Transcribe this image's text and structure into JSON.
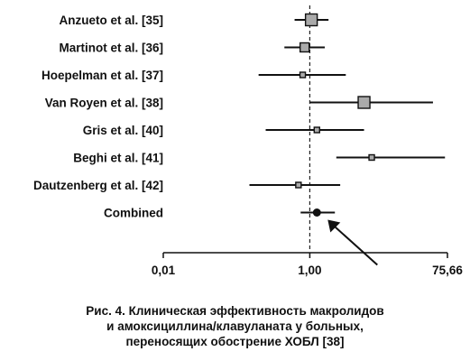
{
  "chart_data": {
    "type": "forest",
    "x_scale": "log",
    "xlim": [
      0.01,
      75.66
    ],
    "x_ticks": [
      {
        "value": 0.01,
        "label": "0,01"
      },
      {
        "value": 1.0,
        "label": "1,00"
      },
      {
        "value": 75.66,
        "label": "75,66"
      }
    ],
    "reference_line": 1.0,
    "studies": [
      {
        "label": "Anzueto et al. [35]",
        "estimate": 1.05,
        "ci": [
          0.62,
          1.8
        ],
        "weight": "large"
      },
      {
        "label": "Martinot et al. [36]",
        "estimate": 0.85,
        "ci": [
          0.45,
          1.6
        ],
        "weight": "medium"
      },
      {
        "label": "Hoepelman et al. [37]",
        "estimate": 0.8,
        "ci": [
          0.2,
          3.1
        ],
        "weight": "small"
      },
      {
        "label": "Van Royen et al. [38]",
        "estimate": 5.5,
        "ci": [
          1.0,
          48.0
        ],
        "weight": "large"
      },
      {
        "label": "Gris et al. [40]",
        "estimate": 1.25,
        "ci": [
          0.25,
          5.5
        ],
        "weight": "small"
      },
      {
        "label": "Beghi et al. [41]",
        "estimate": 7.0,
        "ci": [
          2.3,
          70.0
        ],
        "weight": "small"
      },
      {
        "label": "Dautzenberg et al. [42]",
        "estimate": 0.7,
        "ci": [
          0.15,
          2.6
        ],
        "weight": "small"
      }
    ],
    "combined": {
      "label": "Combined",
      "estimate": 1.25,
      "ci": [
        0.75,
        2.2
      ]
    },
    "annotation": "arrow pointing to combined estimate",
    "colors": {
      "box": "#aaaaaa",
      "line": "#111111",
      "combined": "#111111"
    }
  },
  "caption": {
    "line1": "Рис. 4. Клиническая эффективность макролидов",
    "line2": "и амоксициллина/клавуланата у больных,",
    "line3": "переносящих обострение ХОБЛ [38]"
  }
}
